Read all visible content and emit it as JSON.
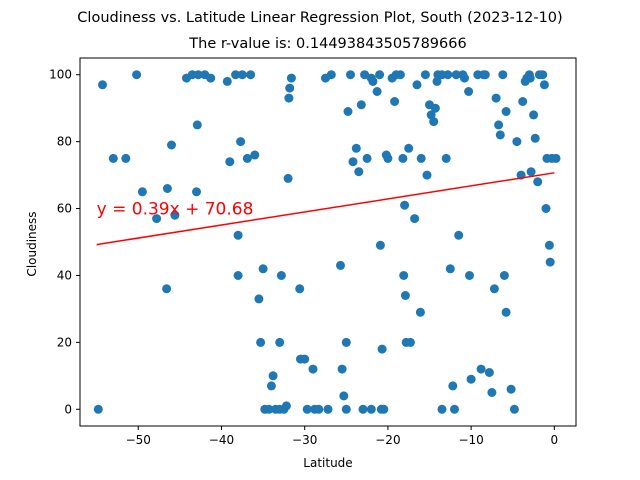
{
  "chart_data": {
    "type": "scatter",
    "title": "Cloudiness vs. Latitude Linear Regression Plot, South (2023-12-10)",
    "subtitle": "The r-value is: 0.14493843505789666",
    "xlabel": "Latitude",
    "ylabel": "Cloudiness",
    "xlim": [
      -57,
      2.6
    ],
    "ylim": [
      -5,
      105
    ],
    "x_ticks": [
      -50,
      -40,
      -30,
      -20,
      -10,
      0
    ],
    "x_tick_labels": [
      "−50",
      "−40",
      "−30",
      "−20",
      "−10",
      "0"
    ],
    "y_ticks": [
      0,
      20,
      40,
      60,
      80,
      100
    ],
    "y_tick_labels": [
      "0",
      "20",
      "40",
      "60",
      "80",
      "100"
    ],
    "grid": false,
    "point_color": "#1f77b4",
    "line_color": "#ff0000",
    "annotation": {
      "text": "y = 0.39x + 70.68",
      "x": -55,
      "y": 60
    },
    "regression": {
      "slope": 0.39,
      "intercept": 70.68,
      "x_range": [
        -55,
        0
      ]
    },
    "points": [
      [
        -54.8,
        0
      ],
      [
        -54.3,
        97
      ],
      [
        -53,
        75
      ],
      [
        -51.5,
        75
      ],
      [
        -50.2,
        100
      ],
      [
        -49.5,
        65
      ],
      [
        -47.8,
        57
      ],
      [
        -46.6,
        36
      ],
      [
        -46.5,
        66
      ],
      [
        -46,
        79
      ],
      [
        -45.6,
        58
      ],
      [
        -44.2,
        99
      ],
      [
        -43.5,
        100
      ],
      [
        -43,
        65
      ],
      [
        -42.9,
        85
      ],
      [
        -42.8,
        100
      ],
      [
        -42,
        100
      ],
      [
        -41.3,
        99
      ],
      [
        -39.3,
        98
      ],
      [
        -39,
        74
      ],
      [
        -38.3,
        100
      ],
      [
        -38,
        52
      ],
      [
        -38,
        40
      ],
      [
        -37.7,
        80
      ],
      [
        -37.5,
        100
      ],
      [
        -36.9,
        75
      ],
      [
        -36.5,
        100
      ],
      [
        -36,
        76
      ],
      [
        -35.5,
        33
      ],
      [
        -35.3,
        20
      ],
      [
        -35,
        42
      ],
      [
        -34.8,
        0
      ],
      [
        -34.3,
        0
      ],
      [
        -34,
        7
      ],
      [
        -33.8,
        10
      ],
      [
        -33.5,
        0
      ],
      [
        -33,
        20
      ],
      [
        -33,
        0
      ],
      [
        -32.8,
        40
      ],
      [
        -32.5,
        0
      ],
      [
        -32.2,
        1
      ],
      [
        -32,
        69
      ],
      [
        -31.9,
        93
      ],
      [
        -31.8,
        96
      ],
      [
        -31.6,
        99
      ],
      [
        -30.6,
        36
      ],
      [
        -30.5,
        15
      ],
      [
        -30,
        15
      ],
      [
        -29.7,
        0
      ],
      [
        -29,
        12
      ],
      [
        -28.8,
        0
      ],
      [
        -28.3,
        0
      ],
      [
        -27.5,
        99
      ],
      [
        -27.2,
        0
      ],
      [
        -26.8,
        100
      ],
      [
        -25.7,
        43
      ],
      [
        -25.5,
        12
      ],
      [
        -25.3,
        4
      ],
      [
        -25,
        20
      ],
      [
        -25,
        0
      ],
      [
        -24.5,
        100
      ],
      [
        -24.8,
        89
      ],
      [
        -24.2,
        74
      ],
      [
        -23.8,
        78
      ],
      [
        -23.5,
        71
      ],
      [
        -23.2,
        91
      ],
      [
        -23,
        0
      ],
      [
        -22.8,
        100
      ],
      [
        -22.5,
        75
      ],
      [
        -22,
        0
      ],
      [
        -22,
        99
      ],
      [
        -21.8,
        98
      ],
      [
        -21.3,
        95
      ],
      [
        -21,
        100
      ],
      [
        -20.9,
        49
      ],
      [
        -20.8,
        0
      ],
      [
        -20.7,
        18
      ],
      [
        -20.5,
        0
      ],
      [
        -20.2,
        76
      ],
      [
        -20,
        75
      ],
      [
        -19.5,
        99
      ],
      [
        -19.2,
        92
      ],
      [
        -19,
        100
      ],
      [
        -18.5,
        100
      ],
      [
        -18.2,
        75
      ],
      [
        -18,
        61
      ],
      [
        -18.1,
        40
      ],
      [
        -17.9,
        34
      ],
      [
        -17.8,
        20
      ],
      [
        -17.5,
        78
      ],
      [
        -17.3,
        20
      ],
      [
        -16.8,
        57
      ],
      [
        -16.5,
        97
      ],
      [
        -16.1,
        29
      ],
      [
        -16,
        75
      ],
      [
        -15.5,
        100
      ],
      [
        -15.3,
        70
      ],
      [
        -15,
        91
      ],
      [
        -14.8,
        88
      ],
      [
        -14.5,
        86
      ],
      [
        -14.3,
        90
      ],
      [
        -14.1,
        98
      ],
      [
        -14,
        100
      ],
      [
        -13.5,
        100
      ],
      [
        -13.5,
        0
      ],
      [
        -13,
        75
      ],
      [
        -12.8,
        100
      ],
      [
        -12.5,
        42
      ],
      [
        -12.2,
        7
      ],
      [
        -12,
        0
      ],
      [
        -11.8,
        100
      ],
      [
        -11.5,
        52
      ],
      [
        -11,
        100
      ],
      [
        -10.8,
        99
      ],
      [
        -10.3,
        95
      ],
      [
        -10.2,
        40
      ],
      [
        -10,
        9
      ],
      [
        -9.2,
        100
      ],
      [
        -8.8,
        12
      ],
      [
        -8.5,
        100
      ],
      [
        -8.3,
        100
      ],
      [
        -7.8,
        11
      ],
      [
        -7.5,
        5
      ],
      [
        -7.2,
        36
      ],
      [
        -7,
        93
      ],
      [
        -6.7,
        85
      ],
      [
        -6.5,
        82
      ],
      [
        -6.2,
        100
      ],
      [
        -6,
        40
      ],
      [
        -5.8,
        89
      ],
      [
        -5.8,
        29
      ],
      [
        -5.2,
        6
      ],
      [
        -4.8,
        0
      ],
      [
        -4.5,
        80
      ],
      [
        -4,
        70
      ],
      [
        -3.8,
        92
      ],
      [
        -3.5,
        98
      ],
      [
        -3.3,
        99
      ],
      [
        -3,
        100
      ],
      [
        -2.9,
        99
      ],
      [
        -2.8,
        71
      ],
      [
        -2.5,
        88
      ],
      [
        -2.3,
        81
      ],
      [
        -2,
        68
      ],
      [
        -1.8,
        100
      ],
      [
        -1.4,
        100
      ],
      [
        -1.2,
        97
      ],
      [
        -1,
        60
      ],
      [
        -0.9,
        75
      ],
      [
        -0.6,
        49
      ],
      [
        -0.5,
        44
      ],
      [
        -0.3,
        75
      ],
      [
        0.2,
        75
      ]
    ]
  }
}
